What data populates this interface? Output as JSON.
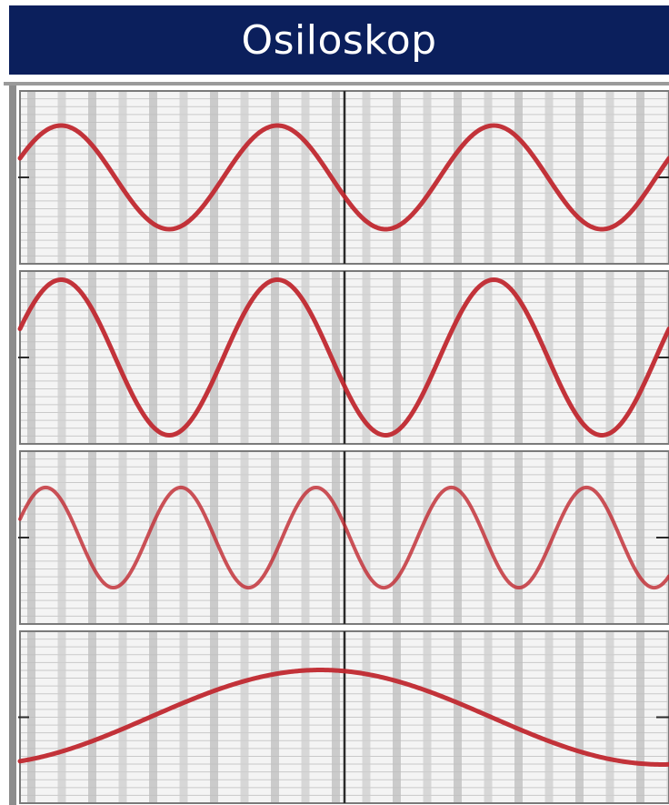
{
  "title": "Osiloskop",
  "colors": {
    "title_background": "#0b1f5c",
    "title_text": "#ffffff",
    "trace": "#c0282f",
    "grid_major": "#9a9a9a",
    "grid_minor": "#c9c9c9",
    "axis": "#2a2a2a"
  },
  "panels": [
    {
      "id": "panel-1",
      "amplitude": 0.6,
      "cycles": 3.0,
      "phase": 0.0
    },
    {
      "id": "panel-2",
      "amplitude": 0.9,
      "cycles": 3.0,
      "phase": 0.0
    },
    {
      "id": "panel-3",
      "amplitude": 0.58,
      "cycles": 4.8,
      "phase": 0.0
    },
    {
      "id": "panel-4",
      "amplitude": 0.55,
      "cycles": 0.95,
      "phase": -0.5
    }
  ]
}
